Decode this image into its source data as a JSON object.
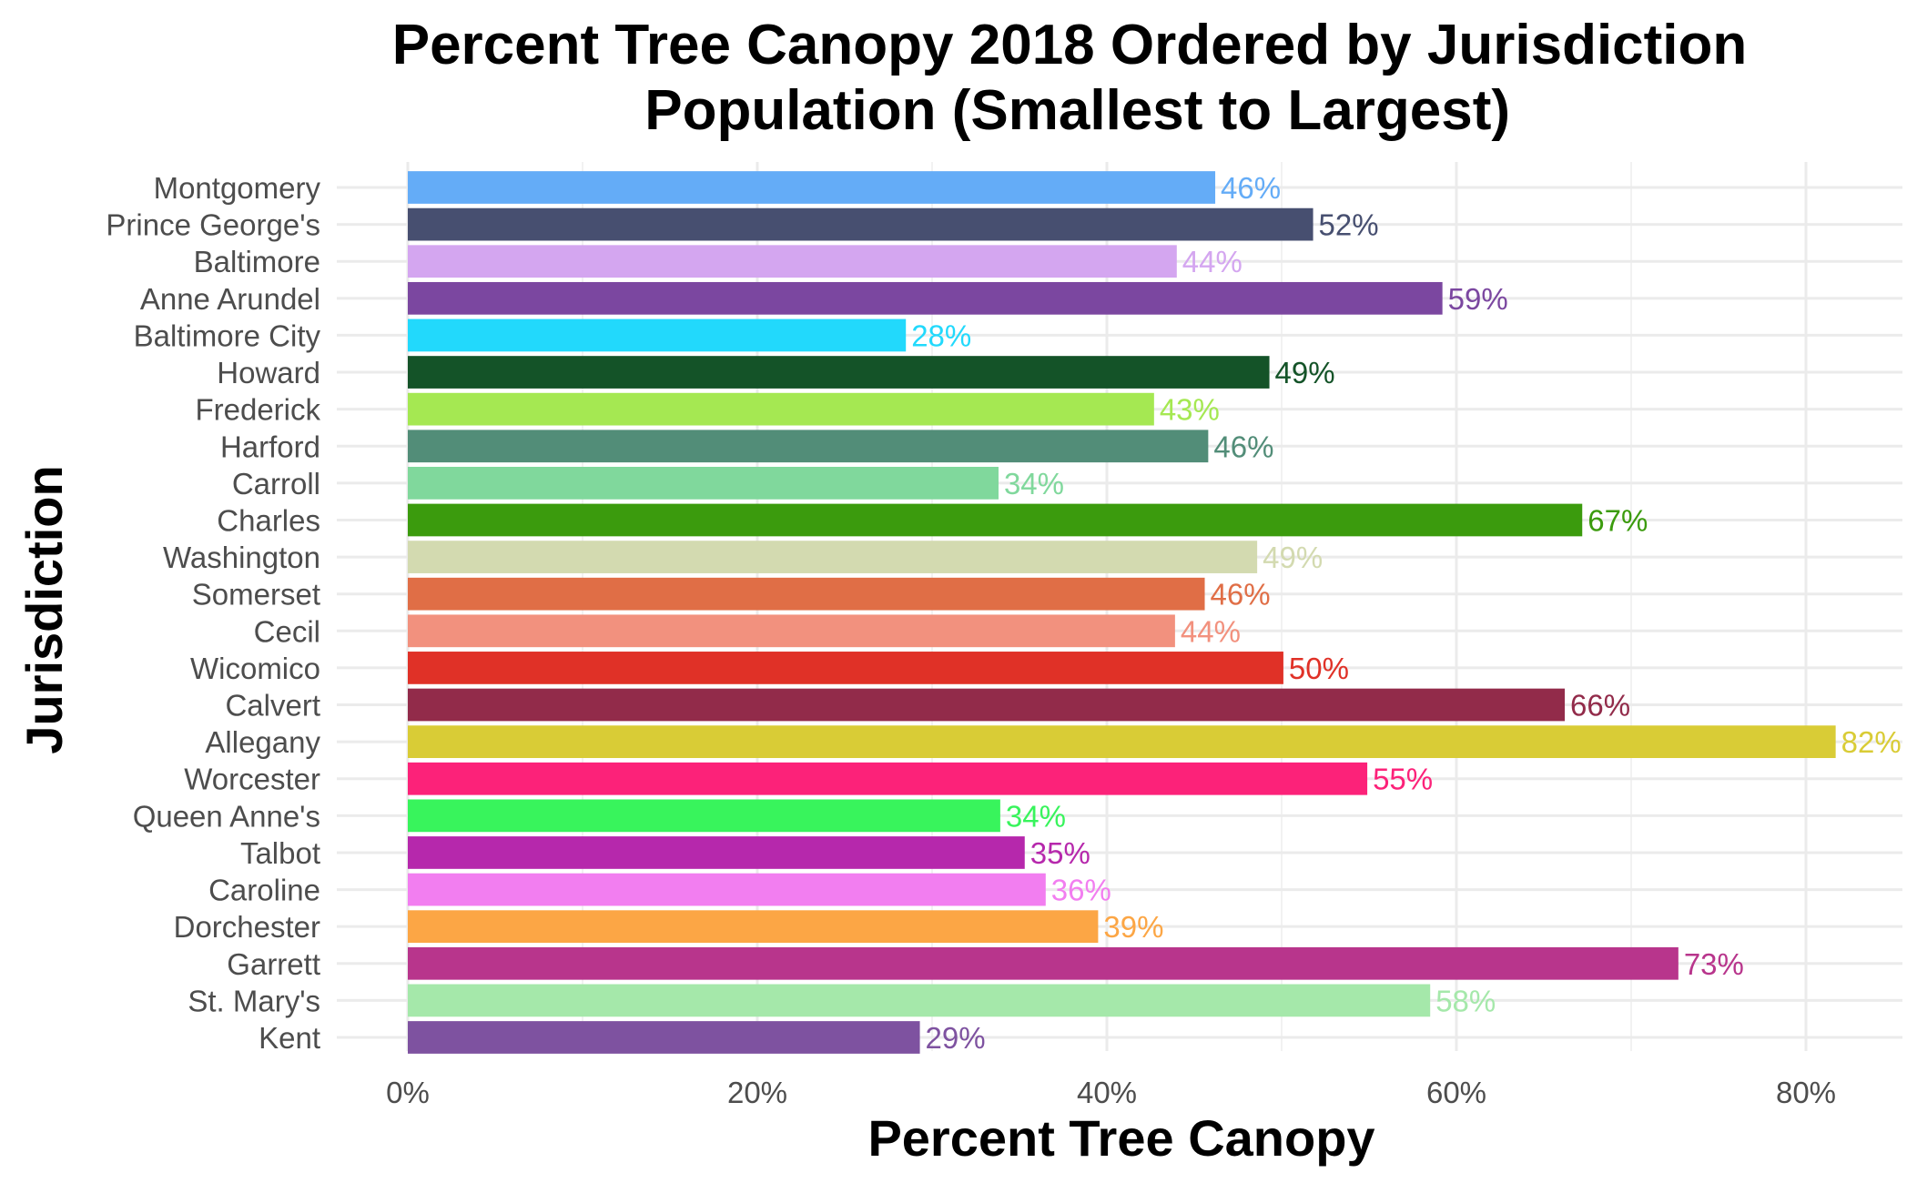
{
  "chart_data": {
    "type": "bar",
    "orientation": "horizontal",
    "title_lines": [
      "Percent Tree Canopy 2018 Ordered by Jurisdiction",
      " Population (Smallest to Largest)"
    ],
    "xlabel": "Percent Tree Canopy",
    "ylabel": "Jurisdiction",
    "xlim": [
      0,
      0.86
    ],
    "x_ticks": [
      {
        "value": 0.0,
        "label": "0%"
      },
      {
        "value": 0.2,
        "label": "20%"
      },
      {
        "value": 0.4,
        "label": "40%"
      },
      {
        "value": 0.6,
        "label": "60%"
      },
      {
        "value": 0.8,
        "label": "80%"
      }
    ],
    "grid": true,
    "legend": "none",
    "categories": [
      "Montgomery",
      "Prince George's",
      "Baltimore",
      "Anne Arundel",
      "Baltimore City",
      "Howard",
      "Frederick",
      "Harford",
      "Carroll",
      "Charles",
      "Washington",
      "Somerset",
      "Cecil",
      "Wicomico",
      "Calvert",
      "Allegany",
      "Worcester",
      "Queen Anne's",
      "Talbot",
      "Caroline",
      "Dorchester",
      "Garrett",
      "St. Mary's",
      "Kent"
    ],
    "values": [
      0.462,
      0.518,
      0.44,
      0.592,
      0.285,
      0.493,
      0.427,
      0.458,
      0.338,
      0.672,
      0.486,
      0.456,
      0.439,
      0.501,
      0.662,
      0.817,
      0.549,
      0.339,
      0.353,
      0.365,
      0.395,
      0.727,
      0.585,
      0.293
    ],
    "value_labels": [
      "46%",
      "52%",
      "44%",
      "59%",
      "28%",
      "49%",
      "43%",
      "46%",
      "34%",
      "67%",
      "49%",
      "46%",
      "44%",
      "50%",
      "66%",
      "82%",
      "55%",
      "34%",
      "35%",
      "36%",
      "39%",
      "73%",
      "58%",
      "29%"
    ],
    "colors": [
      "#64acf7",
      "#474f70",
      "#d4a6f0",
      "#7b47a0",
      "#22d9fc",
      "#145328",
      "#a5e852",
      "#528d78",
      "#80d89c",
      "#3b9b0d",
      "#d3dab0",
      "#e06e46",
      "#f2917e",
      "#e03127",
      "#922b4a",
      "#d9cc36",
      "#fc2279",
      "#38f45c",
      "#b628ac",
      "#f27ef0",
      "#fca645",
      "#b8358c",
      "#a5e8aa",
      "#7e52a0"
    ]
  }
}
